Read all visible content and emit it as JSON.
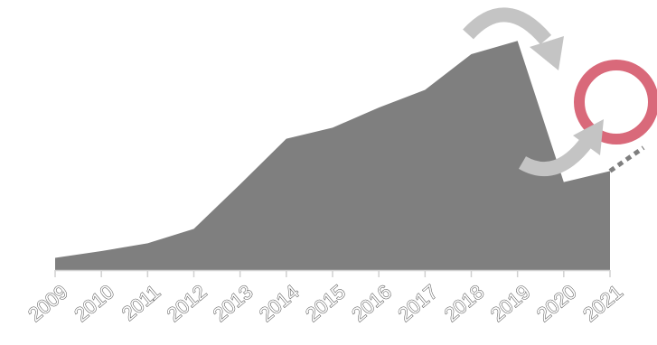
{
  "chart_data": {
    "type": "area",
    "categories": [
      "2009",
      "2010",
      "2011",
      "2012",
      "2013",
      "2014",
      "2015",
      "2016",
      "2017",
      "2018",
      "2019",
      "2020",
      "2021"
    ],
    "values": [
      11,
      17,
      24,
      37,
      77,
      118,
      128,
      146,
      162,
      194,
      206,
      79,
      89
    ],
    "projection": {
      "from_year": "2021",
      "from_value": 89,
      "to_value": 110,
      "style": "dotted"
    },
    "ylim": [
      0,
      220
    ],
    "grid": false,
    "legend": "none",
    "annotations": [
      {
        "kind": "curved-arrow-down",
        "near": "2019"
      },
      {
        "kind": "curved-arrow-up",
        "near": "2020"
      },
      {
        "kind": "circle-highlight",
        "near": "2021"
      }
    ],
    "colors": {
      "area": "#7f7f7f",
      "axis": "#d0d0d0",
      "arrow": "#c4c4c4",
      "highlight": "#d9697a",
      "projection": "#7f7f7f"
    }
  }
}
